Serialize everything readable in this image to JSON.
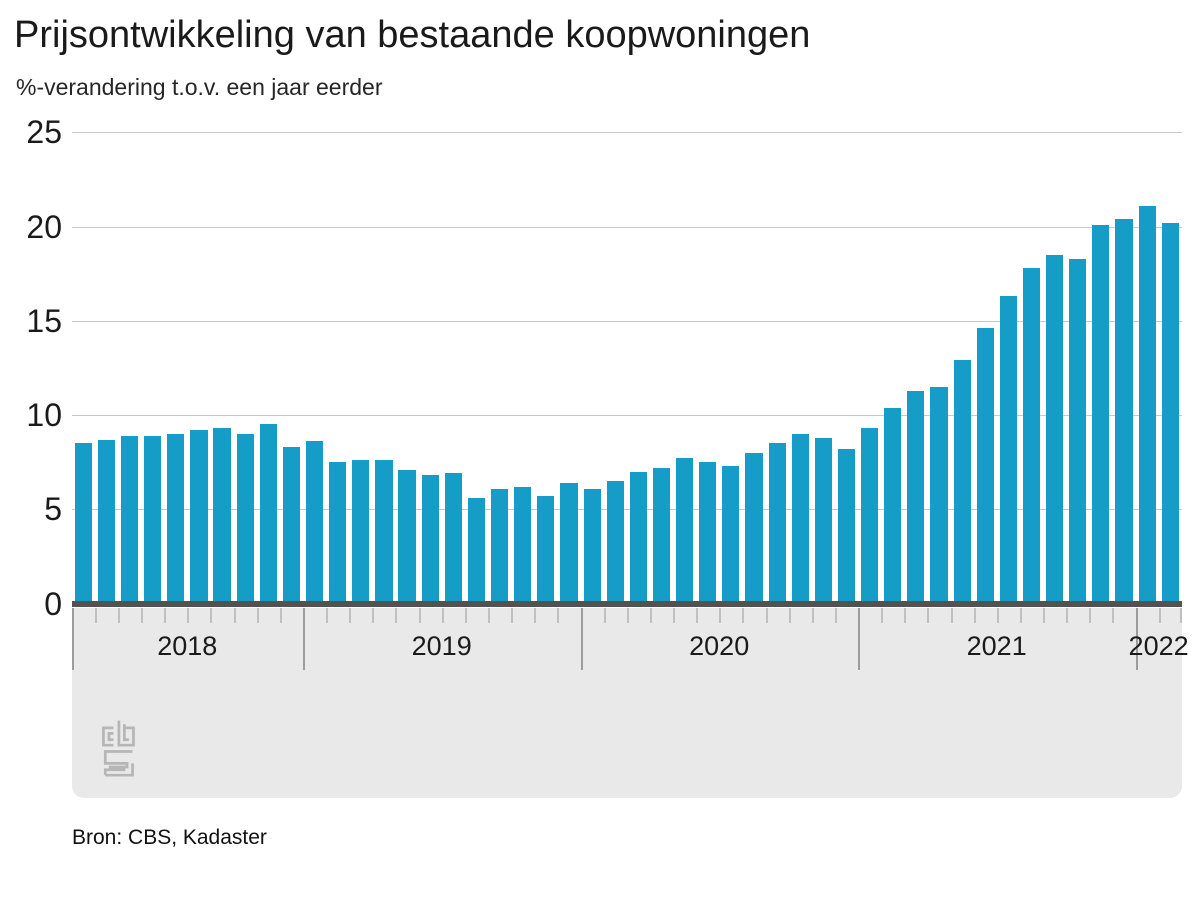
{
  "title": "Prijsontwikkeling van bestaande koopwoningen",
  "subtitle": "%-verandering t.o.v. een jaar eerder",
  "source": "Bron: CBS, Kadaster",
  "logo_name": "cbs-logo",
  "colors": {
    "bar": "#169dc7",
    "zero_axis": "#525254",
    "gridline": "#c9c9c9",
    "axis_band": "#e9e9e9",
    "month_tick": "#c0c0c0",
    "year_separator": "#9c9c9c",
    "logo": "#b6b6b6",
    "text": "#1a1a1a"
  },
  "chart_data": {
    "type": "bar",
    "title": "Prijsontwikkeling van bestaande koopwoningen",
    "xlabel": "",
    "ylabel": "%-verandering t.o.v. een jaar eerder",
    "ylim": [
      0,
      25
    ],
    "y_ticks": [
      0,
      5,
      10,
      15,
      20,
      25
    ],
    "grid": true,
    "legend_position": "none",
    "x_unit": "month",
    "x_year_labels": [
      "2018",
      "2019",
      "2020",
      "2021",
      "2022"
    ],
    "years": [
      {
        "label": "2018",
        "first_month": "mrt",
        "values": [
          8.5,
          8.7,
          8.9,
          8.9,
          9.0,
          9.2,
          9.3,
          9.0,
          9.5,
          8.3
        ]
      },
      {
        "label": "2019",
        "first_month": "jan",
        "values": [
          8.6,
          7.5,
          7.6,
          7.6,
          7.1,
          6.8,
          6.9,
          5.6,
          6.1,
          6.2,
          5.7,
          6.4
        ]
      },
      {
        "label": "2020",
        "first_month": "jan",
        "values": [
          6.1,
          6.5,
          7.0,
          7.2,
          7.7,
          7.5,
          7.3,
          8.0,
          8.5,
          9.0,
          8.8,
          8.2
        ]
      },
      {
        "label": "2021",
        "first_month": "jan",
        "values": [
          9.3,
          10.4,
          11.3,
          11.5,
          12.9,
          14.6,
          16.3,
          17.8,
          18.5,
          18.3,
          20.1,
          20.4
        ]
      },
      {
        "label": "2022",
        "first_month": "jan",
        "values": [
          21.1,
          20.2
        ]
      }
    ]
  }
}
